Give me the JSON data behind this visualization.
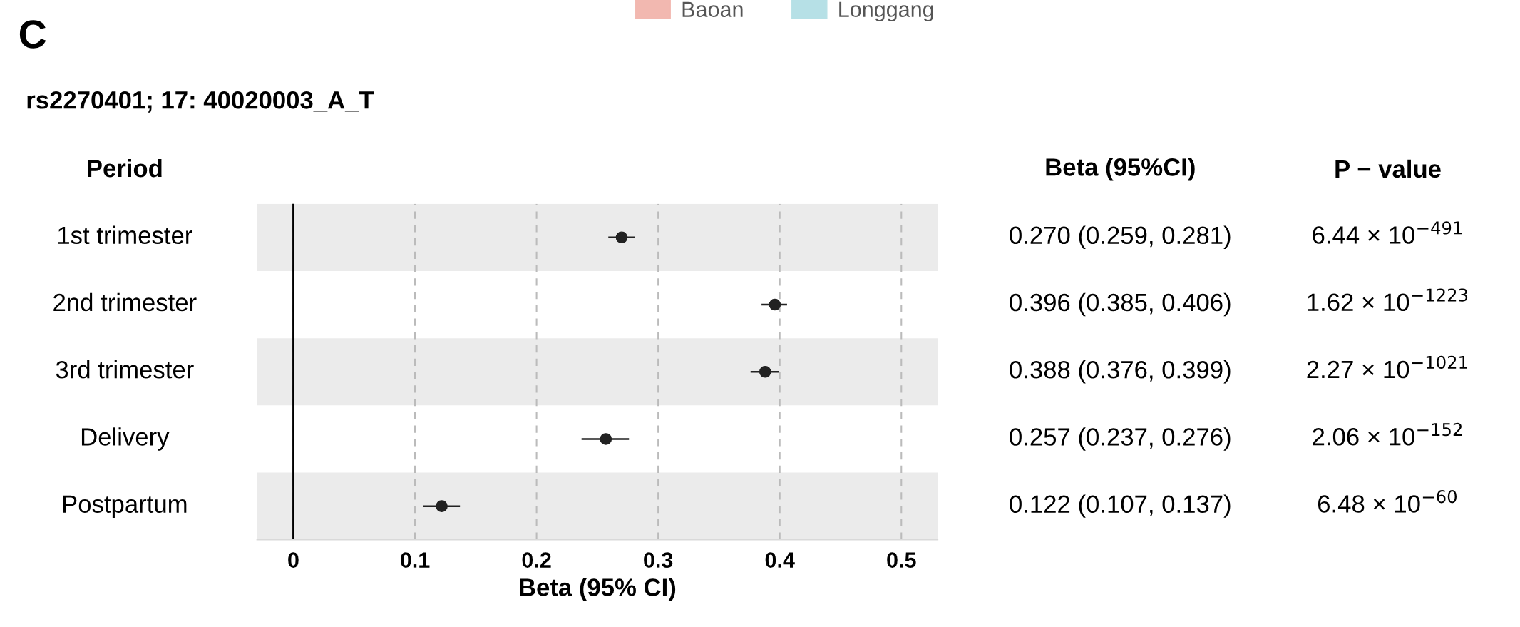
{
  "chart_data": {
    "type": "scatter",
    "title": "rs2270401; 17: 40020003_A_T",
    "xlabel": "Beta (95% CI)",
    "categories": [
      "1st trimester",
      "2nd trimester",
      "3rd trimester",
      "Delivery",
      "Postpartum"
    ],
    "orientation": "horizontal",
    "values": [
      0.27,
      0.396,
      0.388,
      0.257,
      0.122
    ],
    "errors": [
      [
        0.259,
        0.281
      ],
      [
        0.385,
        0.406
      ],
      [
        0.376,
        0.399
      ],
      [
        0.237,
        0.276
      ],
      [
        0.107,
        0.137
      ]
    ],
    "value_labels": [
      "0.270 (0.259, 0.281)",
      "0.396 (0.385, 0.406)",
      "0.388 (0.376, 0.399)",
      "0.257 (0.237, 0.276)",
      "0.122 (0.107, 0.137)"
    ],
    "color": "#222222",
    "marker": "circle",
    "xlim": [
      -0.03,
      0.53
    ],
    "xticks": [
      0,
      0.1,
      0.2,
      0.3,
      0.4,
      0.5
    ],
    "grid": "x",
    "ref_lines": [
      {
        "axis": "x",
        "value": 0,
        "color": "#000000",
        "line_style": "solid"
      }
    ],
    "annotations": [
      "C",
      "Period",
      "Beta (95%CI)",
      "P − value",
      "Baoan",
      "Longgang",
      "6.44 × 10$^{−491}$",
      "1.62 × 10$^{−1223}$",
      "2.27 × 10$^{−1021}$",
      "2.06 × 10$^{−152}$",
      "6.48 × 10$^{−60}$"
    ]
  }
}
